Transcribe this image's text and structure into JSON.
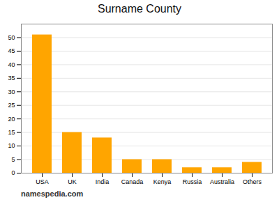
{
  "chart_data": {
    "type": "bar",
    "title": "Surname County",
    "categories": [
      "USA",
      "UK",
      "India",
      "Canada",
      "Kenya",
      "Russia",
      "Australia",
      "Others"
    ],
    "values": [
      51,
      15,
      13,
      5,
      5,
      2,
      2,
      4
    ],
    "color": "#FFA500",
    "ylim": [
      0,
      55
    ],
    "yticks": [
      0,
      5,
      10,
      15,
      20,
      25,
      30,
      35,
      40,
      45,
      50
    ],
    "grid": true,
    "annotations": [
      "namespedia.com"
    ]
  }
}
